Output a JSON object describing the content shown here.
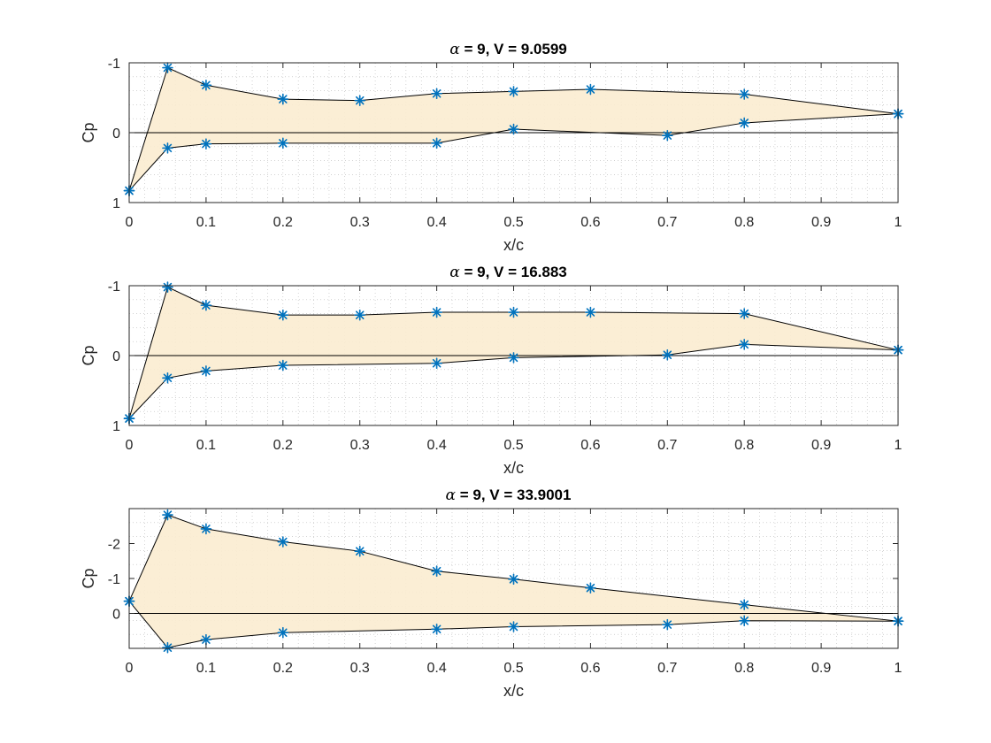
{
  "figure": {
    "background": "#ffffff",
    "marker_color": "#0072bd",
    "fill_color": "#fbecd0",
    "grid": "dotted-minor"
  },
  "chart_data": [
    {
      "type": "area",
      "title_symbol": "α",
      "title_rest": " = 9, V = 9.0599",
      "xlabel": "x/c",
      "ylabel": "Cp",
      "y_reversed": true,
      "xlim": [
        0,
        1
      ],
      "ylim": [
        -1,
        1
      ],
      "xticks": [
        0,
        0.1,
        0.2,
        0.3,
        0.4,
        0.5,
        0.6,
        0.7,
        0.8,
        0.9,
        1
      ],
      "xtick_labels": [
        "0",
        "0.1",
        "0.2",
        "0.3",
        "0.4",
        "0.5",
        "0.6",
        "0.7",
        "0.8",
        "0.9",
        "1"
      ],
      "yticks": [
        -1,
        0,
        1
      ],
      "ytick_labels": [
        "-1",
        "0",
        "1"
      ],
      "series": [
        {
          "x": [
            0,
            0.05,
            0.1,
            0.2,
            0.3,
            0.4,
            0.5,
            0.6,
            0.8,
            1
          ],
          "values": [
            0.83,
            -0.93,
            -0.68,
            -0.48,
            -0.46,
            -0.56,
            -0.59,
            -0.62,
            -0.55,
            -0.27
          ]
        },
        {
          "x": [
            0,
            0.05,
            0.1,
            0.2,
            0.4,
            0.5,
            0.7,
            0.8,
            1
          ],
          "values": [
            0.83,
            0.22,
            0.16,
            0.15,
            0.15,
            -0.05,
            0.04,
            -0.14,
            -0.27
          ]
        }
      ]
    },
    {
      "type": "area",
      "title_symbol": "α",
      "title_rest": " = 9, V = 16.883",
      "xlabel": "x/c",
      "ylabel": "Cp",
      "y_reversed": true,
      "xlim": [
        0,
        1
      ],
      "ylim": [
        -1,
        1
      ],
      "xticks": [
        0,
        0.1,
        0.2,
        0.3,
        0.4,
        0.5,
        0.6,
        0.7,
        0.8,
        0.9,
        1
      ],
      "xtick_labels": [
        "0",
        "0.1",
        "0.2",
        "0.3",
        "0.4",
        "0.5",
        "0.6",
        "0.7",
        "0.8",
        "0.9",
        "1"
      ],
      "yticks": [
        -1,
        0,
        1
      ],
      "ytick_labels": [
        "-1",
        "0",
        "1"
      ],
      "series": [
        {
          "x": [
            0,
            0.05,
            0.1,
            0.2,
            0.3,
            0.4,
            0.5,
            0.6,
            0.8,
            1
          ],
          "values": [
            0.9,
            -0.98,
            -0.72,
            -0.58,
            -0.58,
            -0.62,
            -0.62,
            -0.62,
            -0.6,
            -0.08
          ]
        },
        {
          "x": [
            0,
            0.05,
            0.1,
            0.2,
            0.4,
            0.5,
            0.7,
            0.8,
            1
          ],
          "values": [
            0.9,
            0.32,
            0.22,
            0.14,
            0.11,
            0.03,
            -0.01,
            -0.16,
            -0.08
          ]
        }
      ]
    },
    {
      "type": "area",
      "title_symbol": "α",
      "title_rest": " = 9, V = 33.9001",
      "xlabel": "x/c",
      "ylabel": "Cp",
      "y_reversed": true,
      "xlim": [
        0,
        1
      ],
      "ylim": [
        -3,
        1
      ],
      "xticks": [
        0,
        0.1,
        0.2,
        0.3,
        0.4,
        0.5,
        0.6,
        0.7,
        0.8,
        0.9,
        1
      ],
      "xtick_labels": [
        "0",
        "0.1",
        "0.2",
        "0.3",
        "0.4",
        "0.5",
        "0.6",
        "0.7",
        "0.8",
        "0.9",
        "1"
      ],
      "yticks": [
        -2,
        -1,
        0
      ],
      "ytick_labels": [
        "-2",
        "-1",
        "0"
      ],
      "series": [
        {
          "x": [
            0,
            0.05,
            0.1,
            0.2,
            0.3,
            0.4,
            0.5,
            0.6,
            0.8,
            1
          ],
          "values": [
            -0.35,
            -2.82,
            -2.42,
            -2.05,
            -1.78,
            -1.21,
            -0.98,
            -0.73,
            -0.25,
            0.22
          ]
        },
        {
          "x": [
            0,
            0.05,
            0.1,
            0.2,
            0.4,
            0.5,
            0.7,
            0.8,
            1
          ],
          "values": [
            -0.35,
            0.98,
            0.75,
            0.55,
            0.45,
            0.38,
            0.32,
            0.21,
            0.22
          ]
        }
      ]
    }
  ]
}
